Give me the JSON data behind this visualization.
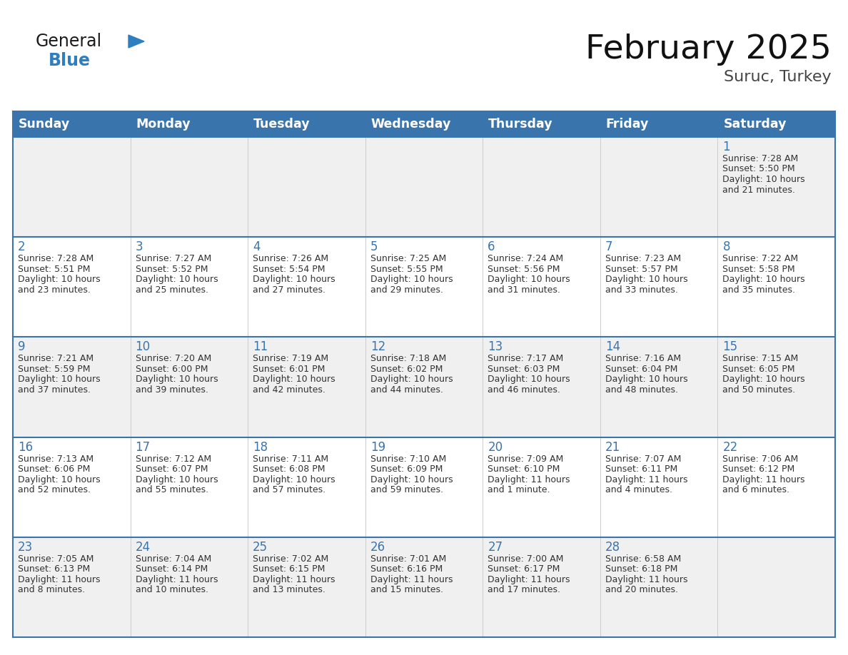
{
  "title": "February 2025",
  "subtitle": "Suruc, Turkey",
  "header_bg": "#3a74ad",
  "header_text_color": "#ffffff",
  "cell_bg_odd": "#f0f0f0",
  "cell_bg_even": "#ffffff",
  "day_num_color": "#3a74ad",
  "text_color": "#333333",
  "border_color": "#3a74ad",
  "row_line_color": "#3a74ad",
  "vert_line_color": "#cccccc",
  "days_of_week": [
    "Sunday",
    "Monday",
    "Tuesday",
    "Wednesday",
    "Thursday",
    "Friday",
    "Saturday"
  ],
  "calendar_data": [
    [
      {
        "day": null,
        "sunrise": null,
        "sunset": null,
        "daylight": null
      },
      {
        "day": null,
        "sunrise": null,
        "sunset": null,
        "daylight": null
      },
      {
        "day": null,
        "sunrise": null,
        "sunset": null,
        "daylight": null
      },
      {
        "day": null,
        "sunrise": null,
        "sunset": null,
        "daylight": null
      },
      {
        "day": null,
        "sunrise": null,
        "sunset": null,
        "daylight": null
      },
      {
        "day": null,
        "sunrise": null,
        "sunset": null,
        "daylight": null
      },
      {
        "day": 1,
        "sunrise": "7:28 AM",
        "sunset": "5:50 PM",
        "daylight": "10 hours\nand 21 minutes."
      }
    ],
    [
      {
        "day": 2,
        "sunrise": "7:28 AM",
        "sunset": "5:51 PM",
        "daylight": "10 hours\nand 23 minutes."
      },
      {
        "day": 3,
        "sunrise": "7:27 AM",
        "sunset": "5:52 PM",
        "daylight": "10 hours\nand 25 minutes."
      },
      {
        "day": 4,
        "sunrise": "7:26 AM",
        "sunset": "5:54 PM",
        "daylight": "10 hours\nand 27 minutes."
      },
      {
        "day": 5,
        "sunrise": "7:25 AM",
        "sunset": "5:55 PM",
        "daylight": "10 hours\nand 29 minutes."
      },
      {
        "day": 6,
        "sunrise": "7:24 AM",
        "sunset": "5:56 PM",
        "daylight": "10 hours\nand 31 minutes."
      },
      {
        "day": 7,
        "sunrise": "7:23 AM",
        "sunset": "5:57 PM",
        "daylight": "10 hours\nand 33 minutes."
      },
      {
        "day": 8,
        "sunrise": "7:22 AM",
        "sunset": "5:58 PM",
        "daylight": "10 hours\nand 35 minutes."
      }
    ],
    [
      {
        "day": 9,
        "sunrise": "7:21 AM",
        "sunset": "5:59 PM",
        "daylight": "10 hours\nand 37 minutes."
      },
      {
        "day": 10,
        "sunrise": "7:20 AM",
        "sunset": "6:00 PM",
        "daylight": "10 hours\nand 39 minutes."
      },
      {
        "day": 11,
        "sunrise": "7:19 AM",
        "sunset": "6:01 PM",
        "daylight": "10 hours\nand 42 minutes."
      },
      {
        "day": 12,
        "sunrise": "7:18 AM",
        "sunset": "6:02 PM",
        "daylight": "10 hours\nand 44 minutes."
      },
      {
        "day": 13,
        "sunrise": "7:17 AM",
        "sunset": "6:03 PM",
        "daylight": "10 hours\nand 46 minutes."
      },
      {
        "day": 14,
        "sunrise": "7:16 AM",
        "sunset": "6:04 PM",
        "daylight": "10 hours\nand 48 minutes."
      },
      {
        "day": 15,
        "sunrise": "7:15 AM",
        "sunset": "6:05 PM",
        "daylight": "10 hours\nand 50 minutes."
      }
    ],
    [
      {
        "day": 16,
        "sunrise": "7:13 AM",
        "sunset": "6:06 PM",
        "daylight": "10 hours\nand 52 minutes."
      },
      {
        "day": 17,
        "sunrise": "7:12 AM",
        "sunset": "6:07 PM",
        "daylight": "10 hours\nand 55 minutes."
      },
      {
        "day": 18,
        "sunrise": "7:11 AM",
        "sunset": "6:08 PM",
        "daylight": "10 hours\nand 57 minutes."
      },
      {
        "day": 19,
        "sunrise": "7:10 AM",
        "sunset": "6:09 PM",
        "daylight": "10 hours\nand 59 minutes."
      },
      {
        "day": 20,
        "sunrise": "7:09 AM",
        "sunset": "6:10 PM",
        "daylight": "11 hours\nand 1 minute."
      },
      {
        "day": 21,
        "sunrise": "7:07 AM",
        "sunset": "6:11 PM",
        "daylight": "11 hours\nand 4 minutes."
      },
      {
        "day": 22,
        "sunrise": "7:06 AM",
        "sunset": "6:12 PM",
        "daylight": "11 hours\nand 6 minutes."
      }
    ],
    [
      {
        "day": 23,
        "sunrise": "7:05 AM",
        "sunset": "6:13 PM",
        "daylight": "11 hours\nand 8 minutes."
      },
      {
        "day": 24,
        "sunrise": "7:04 AM",
        "sunset": "6:14 PM",
        "daylight": "11 hours\nand 10 minutes."
      },
      {
        "day": 25,
        "sunrise": "7:02 AM",
        "sunset": "6:15 PM",
        "daylight": "11 hours\nand 13 minutes."
      },
      {
        "day": 26,
        "sunrise": "7:01 AM",
        "sunset": "6:16 PM",
        "daylight": "11 hours\nand 15 minutes."
      },
      {
        "day": 27,
        "sunrise": "7:00 AM",
        "sunset": "6:17 PM",
        "daylight": "11 hours\nand 17 minutes."
      },
      {
        "day": 28,
        "sunrise": "6:58 AM",
        "sunset": "6:18 PM",
        "daylight": "11 hours\nand 20 minutes."
      },
      {
        "day": null,
        "sunrise": null,
        "sunset": null,
        "daylight": null
      }
    ]
  ],
  "logo_general_color": "#1a1a1a",
  "logo_blue_color": "#2e7ec2",
  "logo_triangle_color": "#2e7ec2"
}
